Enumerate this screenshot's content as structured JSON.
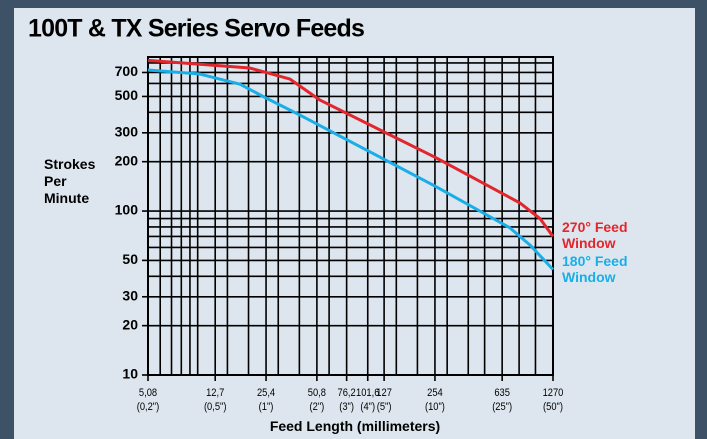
{
  "chart_data": {
    "type": "line",
    "title": "100T & TX Series Servo Feeds",
    "ylabel": "Strokes Per Minute",
    "xlabel": "Feed Length (millimeters)",
    "xlog": true,
    "ylog": true,
    "grid": true,
    "xlim": [
      5.08,
      1270
    ],
    "ylim": [
      10,
      870
    ],
    "xticks": [
      {
        "value": 5.08,
        "label": "5,08"
      },
      {
        "value": 12.7,
        "label": "12,7"
      },
      {
        "value": 25.4,
        "label": "25,4"
      },
      {
        "value": 50.8,
        "label": "50,8"
      },
      {
        "value": 76.2,
        "label": "76,2"
      },
      {
        "value": 101.6,
        "label": "101,6"
      },
      127,
      254,
      635,
      1270
    ],
    "xtick_inch_labels": [
      "(0,2\")",
      "(0,5\")",
      "(1\")",
      "(2\")",
      "(3\")",
      "(4\")",
      "(5\")",
      "(10\")",
      "(25\")",
      "(50\")"
    ],
    "yticks": [
      10,
      20,
      30,
      50,
      100,
      200,
      300,
      500,
      700
    ],
    "xgrid": [
      5.08,
      6,
      7,
      8,
      9,
      10,
      12.7,
      15,
      20,
      25.4,
      30,
      40,
      50.8,
      60,
      76.2,
      101.6,
      127,
      150,
      200,
      254,
      300,
      400,
      500,
      635,
      800,
      1000,
      1270
    ],
    "ygrid": [
      10,
      20,
      30,
      40,
      50,
      60,
      70,
      80,
      90,
      100,
      200,
      300,
      400,
      500,
      600,
      700,
      800
    ],
    "series": [
      {
        "name": "270° Feed Window",
        "color": "#e3262c",
        "x": [
          5.08,
          20.4,
          25.4,
          35.2,
          53,
          254,
          809,
          1063,
          1270
        ],
        "values": [
          830,
          745,
          700,
          638,
          475,
          213,
          112,
          90,
          70
        ]
      },
      {
        "name": "180° Feed Window",
        "color": "#1aaee8",
        "x": [
          5.08,
          10.3,
          17.8,
          25.4,
          40.3,
          254,
          706,
          929,
          1270
        ],
        "values": [
          725,
          685,
          594,
          489,
          385,
          142,
          79,
          62,
          44
        ]
      }
    ]
  }
}
